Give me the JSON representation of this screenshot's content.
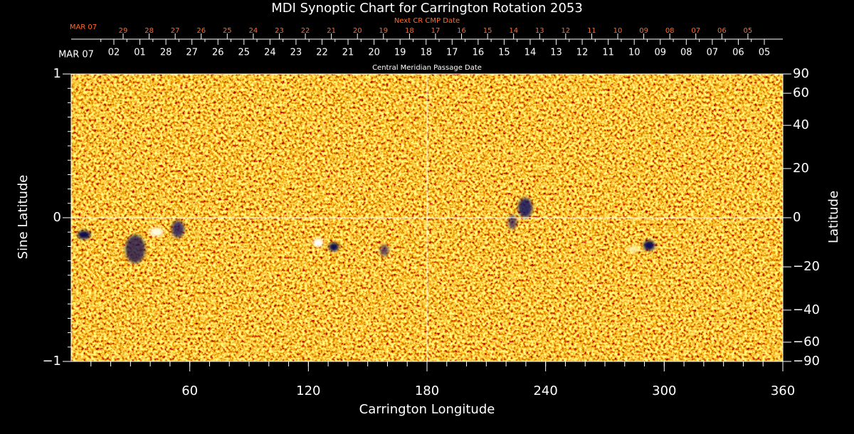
{
  "chart_data": {
    "type": "heatmap",
    "title": "MDI Synoptic Chart for Carrington Rotation 2053",
    "xlabel": "Carrington Longitude",
    "ylabel": "Sine Latitude",
    "y2label": "Latitude",
    "xlim": [
      0,
      360
    ],
    "xticks": [
      60,
      120,
      180,
      240,
      300,
      360
    ],
    "ylim": [
      -1,
      1
    ],
    "yticks": [
      {
        "value": -1,
        "label": "−1"
      },
      0,
      1
    ],
    "y2lim": [
      -90,
      90
    ],
    "y2scale": "sine",
    "y2ticks": [
      {
        "value": -90,
        "label": "−90"
      },
      {
        "value": -60,
        "label": "−60"
      },
      {
        "value": -40,
        "label": "−40"
      },
      {
        "value": -20,
        "label": "−20"
      },
      0,
      20,
      40,
      60,
      90
    ],
    "date_axis": {
      "label": "Central Meridian Passage Date",
      "start_label": "MAR 07",
      "categories": [
        "02",
        "01",
        "28",
        "27",
        "26",
        "25",
        "24",
        "23",
        "22",
        "21",
        "20",
        "19",
        "18",
        "17",
        "16",
        "15",
        "14",
        "13",
        "12",
        "11",
        "10",
        "09",
        "08",
        "07",
        "06",
        "05"
      ]
    },
    "next_date_axis": {
      "label": "Next CR CMP Date",
      "start_label": "MAR 07",
      "categories": [
        "29",
        "28",
        "27",
        "26",
        "25",
        "24",
        "23",
        "22",
        "21",
        "20",
        "19",
        "18",
        "17",
        "16",
        "15",
        "14",
        "13",
        "12",
        "11",
        "10",
        "09",
        "08",
        "07",
        "06",
        "05"
      ]
    }
  }
}
